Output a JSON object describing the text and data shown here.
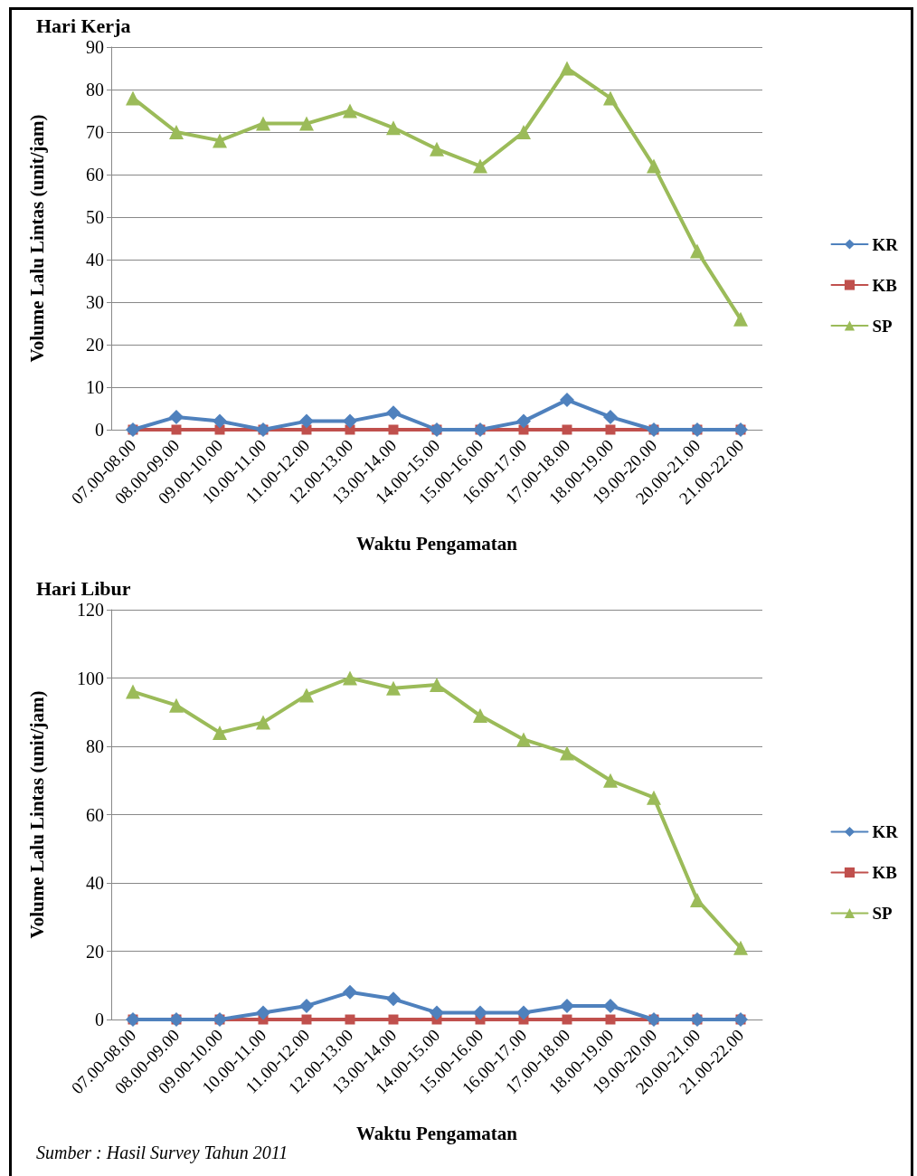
{
  "chart_data": [
    {
      "type": "line",
      "title": "Hari Kerja",
      "xlabel": "Waktu Pengamatan",
      "ylabel": "Volume Lalu Lintas (unit/jam)",
      "categories": [
        "07.00-08.00",
        "08.00-09.00",
        "09.00-10.00",
        "10.00-11.00",
        "11.00-12.00",
        "12.00-13.00",
        "13.00-14.00",
        "14.00-15.00",
        "15.00-16.00",
        "16.00-17.00",
        "17.00-18.00",
        "18.00-19.00",
        "19.00-20.00",
        "20.00-21.00",
        "21.00-22.00"
      ],
      "series": [
        {
          "name": "KR",
          "color": "#4f81bd",
          "marker": "diamond",
          "values": [
            0,
            3,
            2,
            0,
            2,
            2,
            4,
            0,
            0,
            2,
            7,
            3,
            0,
            0,
            0
          ]
        },
        {
          "name": "KB",
          "color": "#c0504d",
          "marker": "square",
          "values": [
            0,
            0,
            0,
            0,
            0,
            0,
            0,
            0,
            0,
            0,
            0,
            0,
            0,
            0,
            0
          ]
        },
        {
          "name": "SP",
          "color": "#9bbb59",
          "marker": "triangle",
          "values": [
            78,
            70,
            68,
            72,
            72,
            75,
            71,
            66,
            62,
            70,
            85,
            78,
            62,
            42,
            26
          ]
        }
      ],
      "ylim": [
        0,
        90
      ],
      "yticks": [
        0,
        10,
        20,
        30,
        40,
        50,
        60,
        70,
        80,
        90
      ],
      "grid": "y",
      "legend": "right"
    },
    {
      "type": "line",
      "title": "Hari Libur",
      "xlabel": "Waktu Pengamatan",
      "ylabel": "Volume Lalu Lintas (unit/jam)",
      "categories": [
        "07.00-08.00",
        "08.00-09.00",
        "09.00-10.00",
        "10.00-11.00",
        "11.00-12.00",
        "12.00-13.00",
        "13.00-14.00",
        "14.00-15.00",
        "15.00-16.00",
        "16.00-17.00",
        "17.00-18.00",
        "18.00-19.00",
        "19.00-20.00",
        "20.00-21.00",
        "21.00-22.00"
      ],
      "series": [
        {
          "name": "KR",
          "color": "#4f81bd",
          "marker": "diamond",
          "values": [
            0,
            0,
            0,
            2,
            4,
            8,
            6,
            2,
            2,
            2,
            4,
            4,
            0,
            0,
            0
          ]
        },
        {
          "name": "KB",
          "color": "#c0504d",
          "marker": "square",
          "values": [
            0,
            0,
            0,
            0,
            0,
            0,
            0,
            0,
            0,
            0,
            0,
            0,
            0,
            0,
            0
          ]
        },
        {
          "name": "SP",
          "color": "#9bbb59",
          "marker": "triangle",
          "values": [
            96,
            92,
            84,
            87,
            95,
            100,
            97,
            98,
            89,
            82,
            78,
            70,
            65,
            35,
            21
          ]
        }
      ],
      "ylim": [
        0,
        120
      ],
      "yticks": [
        0,
        20,
        40,
        60,
        80,
        100,
        120
      ],
      "grid": "y",
      "legend": "right",
      "annotations": [
        "Sumber : Hasil Survey Tahun 2011"
      ]
    }
  ]
}
